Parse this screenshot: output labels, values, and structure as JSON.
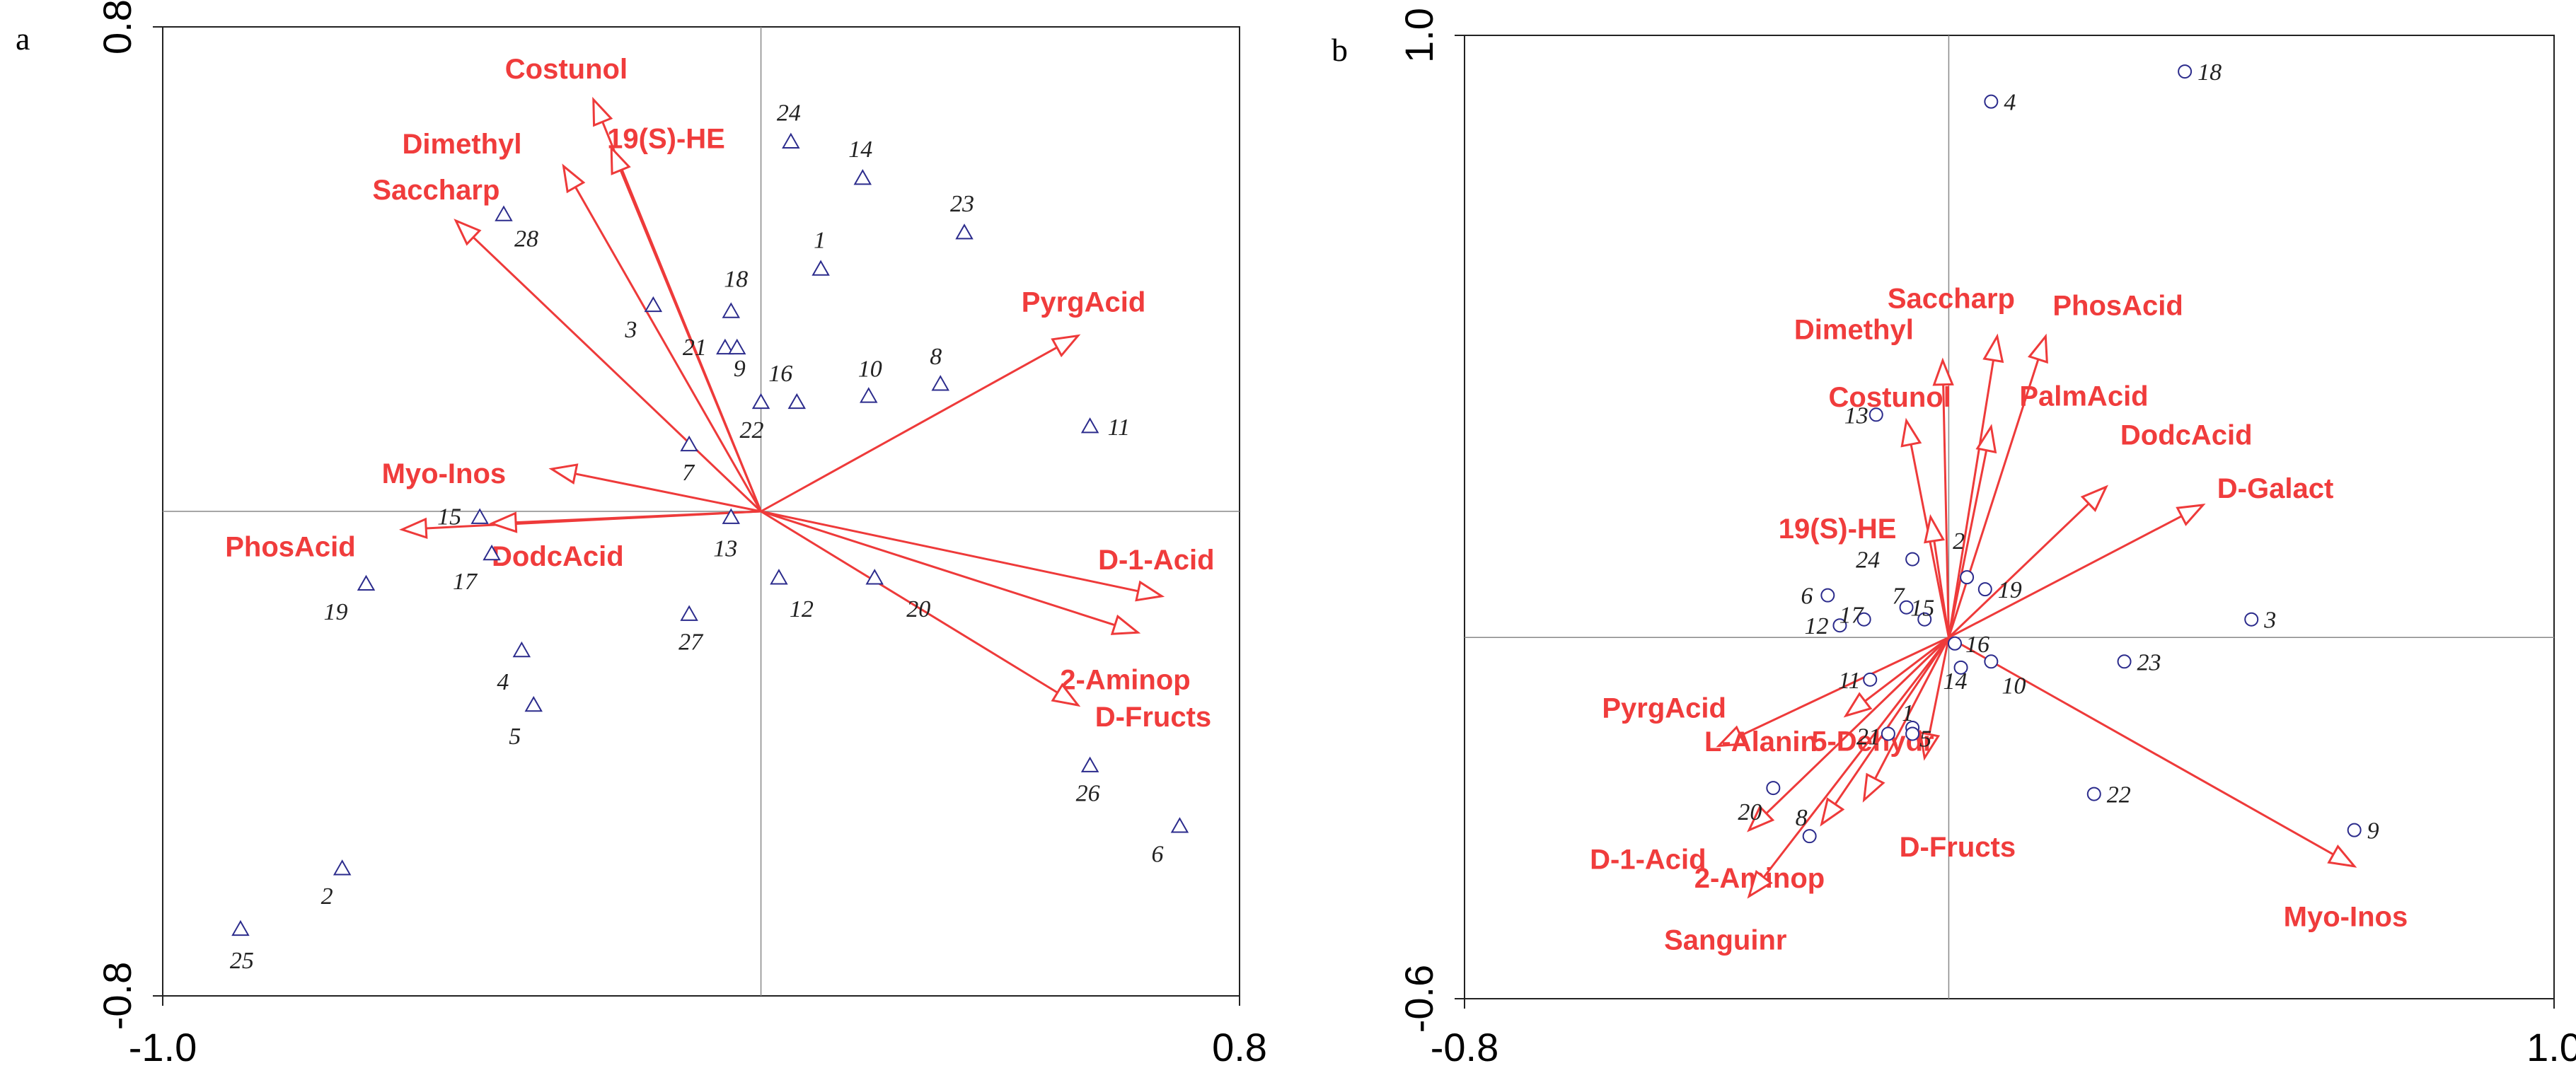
{
  "chart_data": [
    {
      "panel": "a",
      "type": "scatter",
      "subtype": "biplot",
      "title": "",
      "xlabel": "",
      "ylabel": "",
      "xlim": [
        -1.0,
        0.8
      ],
      "ylim": [
        -0.8,
        0.8
      ],
      "x_tick_labels": [
        "-1.0",
        "0.8"
      ],
      "y_tick_labels": [
        "0.8",
        "-0.8"
      ],
      "marker": "triangle",
      "vectors": [
        {
          "name": "Costunol",
          "x": -0.28,
          "y": 0.68
        },
        {
          "name": "19(S)-HE",
          "x": -0.25,
          "y": 0.6
        },
        {
          "name": "Dimethyl",
          "x": -0.33,
          "y": 0.57
        },
        {
          "name": "Saccharp",
          "x": -0.51,
          "y": 0.48
        },
        {
          "name": "PyrgAcid",
          "x": 0.53,
          "y": 0.29
        },
        {
          "name": "Myo-Inos",
          "x": -0.35,
          "y": 0.07
        },
        {
          "name": "PhosAcid",
          "x": -0.6,
          "y": -0.03
        },
        {
          "name": "DodcAcid",
          "x": -0.45,
          "y": -0.02
        },
        {
          "name": "D-1-Acid",
          "x": 0.67,
          "y": -0.14
        },
        {
          "name": "2-Aminop",
          "x": 0.63,
          "y": -0.2
        },
        {
          "name": "D-Fructs",
          "x": 0.53,
          "y": -0.32
        }
      ],
      "points": [
        {
          "label": "24",
          "x": 0.05,
          "y": 0.61
        },
        {
          "label": "14",
          "x": 0.17,
          "y": 0.55
        },
        {
          "label": "28",
          "x": -0.43,
          "y": 0.49
        },
        {
          "label": "23",
          "x": 0.34,
          "y": 0.46
        },
        {
          "label": "1",
          "x": 0.1,
          "y": 0.4
        },
        {
          "label": "18",
          "x": -0.05,
          "y": 0.33
        },
        {
          "label": "3",
          "x": -0.18,
          "y": 0.34
        },
        {
          "label": "21",
          "x": -0.06,
          "y": 0.27
        },
        {
          "label": "9",
          "x": -0.04,
          "y": 0.27
        },
        {
          "label": "16",
          "x": 0.06,
          "y": 0.18
        },
        {
          "label": "22",
          "x": 0.0,
          "y": 0.18
        },
        {
          "label": "10",
          "x": 0.18,
          "y": 0.19
        },
        {
          "label": "8",
          "x": 0.3,
          "y": 0.21
        },
        {
          "label": "11",
          "x": 0.55,
          "y": 0.14
        },
        {
          "label": "7",
          "x": -0.12,
          "y": 0.11
        },
        {
          "label": "15",
          "x": -0.47,
          "y": -0.01
        },
        {
          "label": "13",
          "x": -0.05,
          "y": -0.01
        },
        {
          "label": "17",
          "x": -0.45,
          "y": -0.07
        },
        {
          "label": "19",
          "x": -0.66,
          "y": -0.12
        },
        {
          "label": "12",
          "x": 0.03,
          "y": -0.11
        },
        {
          "label": "20",
          "x": 0.19,
          "y": -0.11
        },
        {
          "label": "27",
          "x": -0.12,
          "y": -0.17
        },
        {
          "label": "4",
          "x": -0.4,
          "y": -0.23
        },
        {
          "label": "5",
          "x": -0.38,
          "y": -0.32
        },
        {
          "label": "26",
          "x": 0.55,
          "y": -0.42
        },
        {
          "label": "6",
          "x": 0.7,
          "y": -0.52
        },
        {
          "label": "2",
          "x": -0.7,
          "y": -0.59
        },
        {
          "label": "25",
          "x": -0.87,
          "y": -0.69
        }
      ]
    },
    {
      "panel": "b",
      "type": "scatter",
      "subtype": "biplot",
      "title": "",
      "xlabel": "",
      "ylabel": "",
      "xlim": [
        -0.8,
        1.0
      ],
      "ylim": [
        -0.6,
        1.0
      ],
      "x_tick_labels": [
        "-0.8",
        "1.0"
      ],
      "y_tick_labels": [
        "1.0",
        "-0.6"
      ],
      "marker": "circle",
      "vectors": [
        {
          "name": "Saccharp",
          "x": 0.08,
          "y": 0.5
        },
        {
          "name": "PhosAcid",
          "x": 0.16,
          "y": 0.5
        },
        {
          "name": "Dimethyl",
          "x": -0.01,
          "y": 0.46
        },
        {
          "name": "PalmAcid",
          "x": 0.07,
          "y": 0.35
        },
        {
          "name": "Costunol",
          "x": -0.07,
          "y": 0.36
        },
        {
          "name": "DodcAcid",
          "x": 0.26,
          "y": 0.25
        },
        {
          "name": "D-Galact",
          "x": 0.42,
          "y": 0.22
        },
        {
          "name": "19(S)-HE",
          "x": -0.03,
          "y": 0.2
        },
        {
          "name": "PyrgAcid",
          "x": -0.38,
          "y": -0.18
        },
        {
          "name": "L-Alanin",
          "x": -0.17,
          "y": -0.13
        },
        {
          "name": "5-Dehydr",
          "x": -0.04,
          "y": -0.2
        },
        {
          "name": "D-Fructs",
          "x": -0.14,
          "y": -0.27
        },
        {
          "name": "D-1-Acid",
          "x": -0.33,
          "y": -0.32
        },
        {
          "name": "2-Aminop",
          "x": -0.21,
          "y": -0.31
        },
        {
          "name": "Sanguinr",
          "x": -0.33,
          "y": -0.43
        },
        {
          "name": "Myo-Inos",
          "x": 0.67,
          "y": -0.38
        }
      ],
      "points": [
        {
          "label": "18",
          "x": 0.39,
          "y": 0.94
        },
        {
          "label": "4",
          "x": 0.07,
          "y": 0.89
        },
        {
          "label": "13",
          "x": -0.12,
          "y": 0.37
        },
        {
          "label": "24",
          "x": -0.06,
          "y": 0.13
        },
        {
          "label": "2",
          "x": 0.03,
          "y": 0.1
        },
        {
          "label": "6",
          "x": -0.2,
          "y": 0.07
        },
        {
          "label": "19",
          "x": 0.06,
          "y": 0.08
        },
        {
          "label": "12",
          "x": -0.18,
          "y": 0.02
        },
        {
          "label": "17",
          "x": -0.14,
          "y": 0.03
        },
        {
          "label": "7",
          "x": -0.07,
          "y": 0.05
        },
        {
          "label": "15",
          "x": -0.04,
          "y": 0.03
        },
        {
          "label": "3",
          "x": 0.5,
          "y": 0.03
        },
        {
          "label": "16",
          "x": 0.01,
          "y": -0.01
        },
        {
          "label": "23",
          "x": 0.29,
          "y": -0.04
        },
        {
          "label": "14",
          "x": 0.02,
          "y": -0.05
        },
        {
          "label": "10",
          "x": 0.07,
          "y": -0.04
        },
        {
          "label": "11",
          "x": -0.13,
          "y": -0.07
        },
        {
          "label": "1",
          "x": -0.06,
          "y": -0.15
        },
        {
          "label": "21",
          "x": -0.1,
          "y": -0.16
        },
        {
          "label": "5",
          "x": -0.06,
          "y": -0.16
        },
        {
          "label": "20",
          "x": -0.29,
          "y": -0.25
        },
        {
          "label": "22",
          "x": 0.24,
          "y": -0.26
        },
        {
          "label": "8",
          "x": -0.23,
          "y": -0.33
        },
        {
          "label": "9",
          "x": 0.67,
          "y": -0.32
        }
      ]
    }
  ]
}
